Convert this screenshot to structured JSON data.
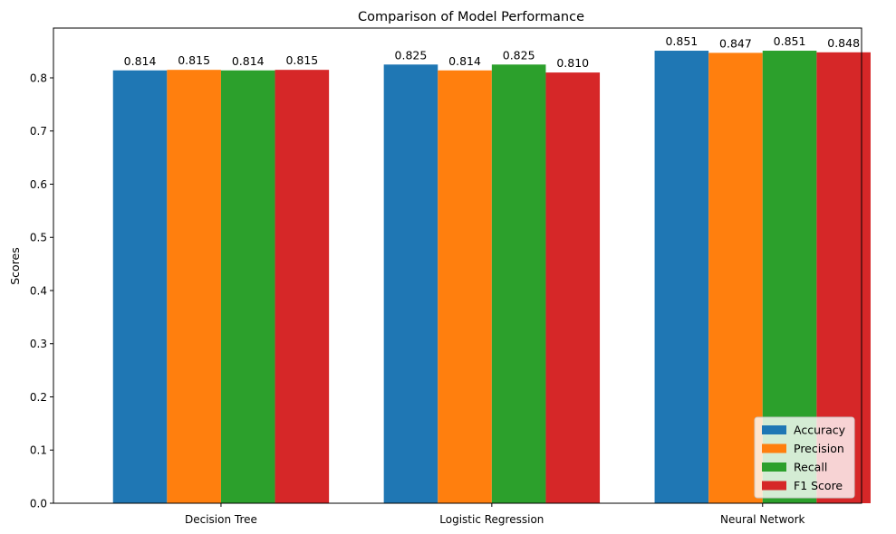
{
  "chart_data": {
    "type": "bar",
    "title": "Comparison of Model Performance",
    "xlabel": "",
    "ylabel": "Scores",
    "ylim": [
      0,
      0.8936
    ],
    "yticks": [
      0.0,
      0.1,
      0.2,
      0.3,
      0.4,
      0.5,
      0.6,
      0.7,
      0.8
    ],
    "ytick_labels": [
      "0.0",
      "0.1",
      "0.2",
      "0.3",
      "0.4",
      "0.5",
      "0.6",
      "0.7",
      "0.8"
    ],
    "categories": [
      "Decision Tree",
      "Logistic Regression",
      "Neural Network"
    ],
    "series": [
      {
        "name": "Accuracy",
        "color": "#1f77b4",
        "values": [
          0.814,
          0.825,
          0.851
        ],
        "labels": [
          "0.814",
          "0.825",
          "0.851"
        ]
      },
      {
        "name": "Precision",
        "color": "#ff7f0e",
        "values": [
          0.815,
          0.814,
          0.847
        ],
        "labels": [
          "0.815",
          "0.814",
          "0.847"
        ]
      },
      {
        "name": "Recall",
        "color": "#2ca02c",
        "values": [
          0.814,
          0.825,
          0.851
        ],
        "labels": [
          "0.814",
          "0.825",
          "0.851"
        ]
      },
      {
        "name": "F1 Score",
        "color": "#d62728",
        "values": [
          0.815,
          0.81,
          0.848
        ],
        "labels": [
          "0.815",
          "0.810",
          "0.848"
        ]
      }
    ],
    "legend_position": "lower-right",
    "grid": false
  }
}
